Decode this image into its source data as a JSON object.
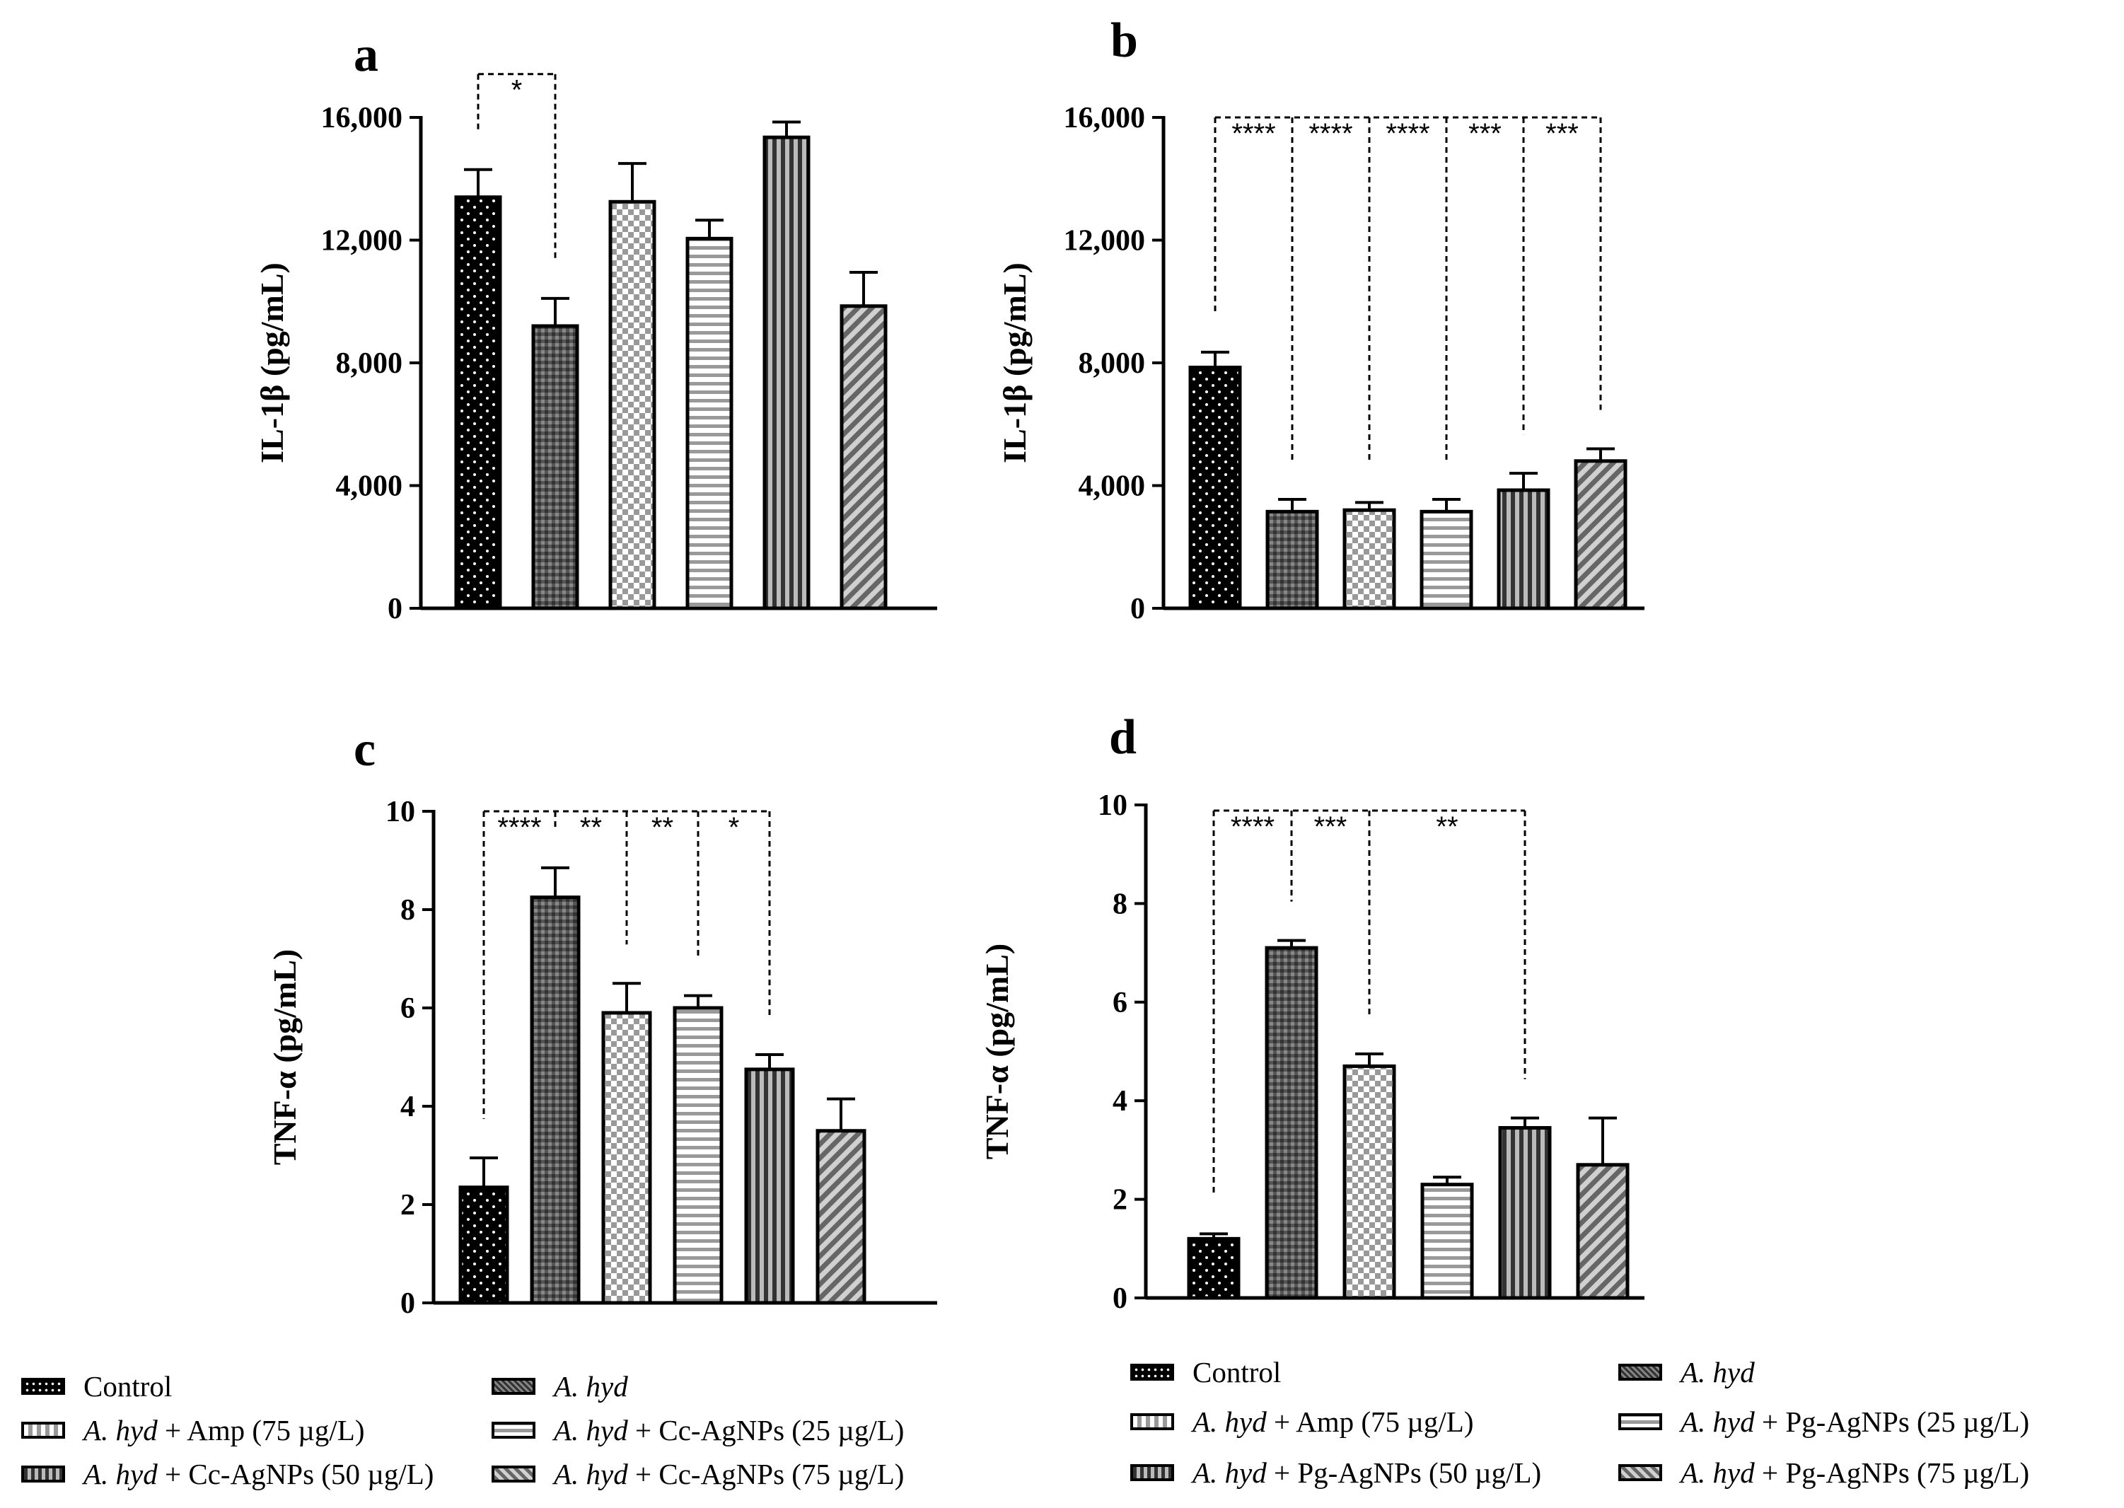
{
  "legends": [
    {
      "items": [
        {
          "italic": "",
          "text": "Control",
          "pattern": "p-dots"
        },
        {
          "italic": "A. hyd",
          "text": "",
          "pattern": "p-grid"
        },
        {
          "italic": "A. hyd",
          "text": " + Amp (75 µg/L)",
          "pattern": "p-check"
        },
        {
          "italic": "A. hyd",
          "text": " + Cc-AgNPs (25 µg/L)",
          "pattern": "p-hlines"
        },
        {
          "italic": "A. hyd",
          "text": " + Cc-AgNPs (50 µg/L)",
          "pattern": "p-vlines"
        },
        {
          "italic": "A. hyd",
          "text": " + Cc-AgNPs (75 µg/L)",
          "pattern": "p-diag"
        }
      ]
    },
    {
      "items": [
        {
          "italic": "",
          "text": "Control",
          "pattern": "p-dots"
        },
        {
          "italic": "A. hyd",
          "text": "",
          "pattern": "p-grid"
        },
        {
          "italic": "A. hyd",
          "text": " + Amp (75 µg/L)",
          "pattern": "p-check"
        },
        {
          "italic": "A. hyd",
          "text": " + Pg-AgNPs (25 µg/L)",
          "pattern": "p-hlines"
        },
        {
          "italic": "A. hyd",
          "text": " + Pg-AgNPs (50 µg/L)",
          "pattern": "p-vlines"
        },
        {
          "italic": "A. hyd",
          "text": " + Pg-AgNPs (75 µg/L)",
          "pattern": "p-diag"
        }
      ]
    }
  ],
  "chart_data": [
    {
      "panel": "a",
      "type": "bar",
      "ylabel": "IL-1β (pg/mL)",
      "ylim": [
        0,
        16000
      ],
      "yticks": [
        0,
        4000,
        8000,
        12000,
        16000
      ],
      "yticklabels": [
        "0",
        "4,000",
        "8,000",
        "12,000",
        "16,000"
      ],
      "categories": [
        "Control",
        "A. hyd",
        "A. hyd + Amp (75 µg/L)",
        "A. hyd + Cc-AgNPs (25 µg/L)",
        "A. hyd + Cc-AgNPs (50 µg/L)",
        "A. hyd + Cc-AgNPs (75 µg/L)"
      ],
      "values": [
        13400,
        9200,
        13250,
        12050,
        15350,
        9850
      ],
      "errors": [
        900,
        900,
        1250,
        600,
        500,
        1100
      ],
      "significance": [
        {
          "from": 0,
          "to": 1,
          "label": "*"
        }
      ]
    },
    {
      "panel": "b",
      "type": "bar",
      "ylabel": "IL-1β (pg/mL)",
      "ylim": [
        0,
        16000
      ],
      "yticks": [
        0,
        4000,
        8000,
        12000,
        16000
      ],
      "yticklabels": [
        "0",
        "4,000",
        "8,000",
        "12,000",
        "16,000"
      ],
      "categories": [
        "Control",
        "A. hyd",
        "A. hyd + Amp (75 µg/L)",
        "A. hyd + Pg-AgNPs (25 µg/L)",
        "A. hyd + Pg-AgNPs (50 µg/L)",
        "A. hyd + Pg-AgNPs (75 µg/L)"
      ],
      "values": [
        7850,
        3150,
        3200,
        3150,
        3850,
        4800
      ],
      "errors": [
        500,
        400,
        250,
        400,
        550,
        400
      ],
      "significance": [
        {
          "from": 0,
          "to": 1,
          "label": "****"
        },
        {
          "from": 0,
          "to": 2,
          "label": "****"
        },
        {
          "from": 0,
          "to": 3,
          "label": "****"
        },
        {
          "from": 0,
          "to": 4,
          "label": "***"
        },
        {
          "from": 0,
          "to": 5,
          "label": "***"
        }
      ]
    },
    {
      "panel": "c",
      "type": "bar",
      "ylabel": "TNF-α (pg/mL)",
      "ylim": [
        0,
        10
      ],
      "yticks": [
        0,
        2,
        4,
        6,
        8,
        10
      ],
      "yticklabels": [
        "0",
        "2",
        "4",
        "6",
        "8",
        "10"
      ],
      "categories": [
        "Control",
        "A. hyd",
        "A. hyd + Amp (75 µg/L)",
        "A. hyd + Cc-AgNPs (25 µg/L)",
        "A. hyd + Cc-AgNPs (50 µg/L)",
        "A. hyd + Cc-AgNPs (75 µg/L)"
      ],
      "values": [
        2.35,
        8.25,
        5.9,
        6.0,
        4.75,
        3.5
      ],
      "errors": [
        0.6,
        0.6,
        0.6,
        0.25,
        0.3,
        0.65
      ],
      "significance": [
        {
          "from": 0,
          "to": 1,
          "label": "****"
        },
        {
          "from": 1,
          "to": 2,
          "label": "**"
        },
        {
          "from": 1,
          "to": 3,
          "label": "**"
        },
        {
          "from": 1,
          "to": 4,
          "label": "*"
        }
      ]
    },
    {
      "panel": "d",
      "type": "bar",
      "ylabel": "TNF-α (pg/mL)",
      "ylim": [
        0,
        10
      ],
      "yticks": [
        0,
        2,
        4,
        6,
        8,
        10
      ],
      "yticklabels": [
        "0",
        "2",
        "4",
        "6",
        "8",
        "10"
      ],
      "categories": [
        "Control",
        "A. hyd",
        "A. hyd + Amp (75 µg/L)",
        "A. hyd + Pg-AgNPs (25 µg/L)",
        "A. hyd + Pg-AgNPs (50 µg/L)",
        "A. hyd + Pg-AgNPs (75 µg/L)"
      ],
      "values": [
        1.2,
        7.1,
        4.7,
        2.3,
        3.45,
        2.7
      ],
      "errors": [
        0.1,
        0.15,
        0.25,
        0.15,
        0.2,
        0.95
      ],
      "significance": [
        {
          "from": 0,
          "to": 1,
          "label": "****"
        },
        {
          "from": 1,
          "to": 2,
          "label": "***"
        },
        {
          "from": 1,
          "to": 4,
          "label": "**"
        }
      ]
    }
  ]
}
